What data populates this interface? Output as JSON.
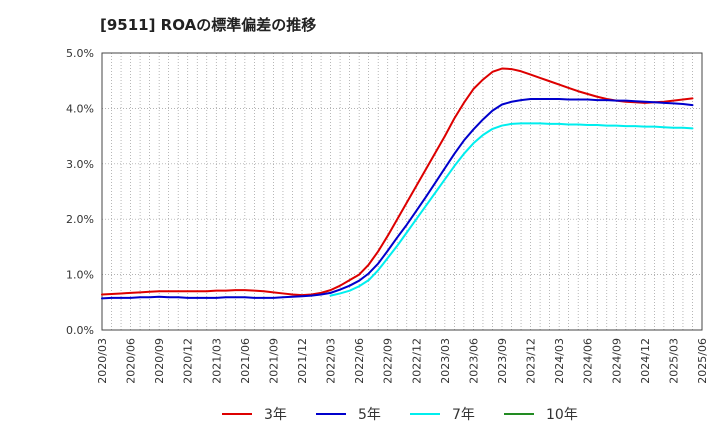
{
  "chart_data": {
    "type": "line",
    "title": "[9511]  ROAの標準偏差の推移",
    "xlabel": "",
    "ylabel": "",
    "ylim": [
      0,
      5
    ],
    "yticks": [
      0,
      1,
      2,
      3,
      4,
      5
    ],
    "ytick_labels": [
      "0.0%",
      "1.0%",
      "2.0%",
      "3.0%",
      "4.0%",
      "5.0%"
    ],
    "xlim": [
      "2020/03",
      "2025/06"
    ],
    "xtick_labels": [
      "2020/03",
      "2020/06",
      "2020/09",
      "2020/12",
      "2021/03",
      "2021/06",
      "2021/09",
      "2021/12",
      "2022/03",
      "2022/06",
      "2022/09",
      "2022/12",
      "2023/03",
      "2023/06",
      "2023/09",
      "2023/12",
      "2024/03",
      "2024/06",
      "2024/09",
      "2024/12",
      "2025/03",
      "2025/06"
    ],
    "grid": true,
    "legend_position": "bottom",
    "series": [
      {
        "name": "3年",
        "color": "#dd0000",
        "start": "2020/03",
        "values": [
          0.64,
          0.65,
          0.66,
          0.67,
          0.68,
          0.69,
          0.7,
          0.7,
          0.7,
          0.7,
          0.7,
          0.7,
          0.71,
          0.71,
          0.72,
          0.72,
          0.71,
          0.7,
          0.68,
          0.66,
          0.64,
          0.63,
          0.64,
          0.67,
          0.72,
          0.8,
          0.9,
          1.0,
          1.18,
          1.42,
          1.7,
          2.0,
          2.3,
          2.6,
          2.9,
          3.2,
          3.5,
          3.82,
          4.1,
          4.35,
          4.52,
          4.66,
          4.72,
          4.71,
          4.67,
          4.61,
          4.55,
          4.49,
          4.43,
          4.37,
          4.31,
          4.26,
          4.21,
          4.17,
          4.14,
          4.12,
          4.11,
          4.1,
          4.11,
          4.12,
          4.14,
          4.16,
          4.18
        ]
      },
      {
        "name": "5年",
        "color": "#0000cc",
        "start": "2020/03",
        "values": [
          0.57,
          0.58,
          0.58,
          0.58,
          0.59,
          0.59,
          0.6,
          0.59,
          0.59,
          0.58,
          0.58,
          0.58,
          0.58,
          0.59,
          0.59,
          0.59,
          0.58,
          0.58,
          0.58,
          0.59,
          0.6,
          0.61,
          0.62,
          0.64,
          0.67,
          0.73,
          0.8,
          0.89,
          1.02,
          1.2,
          1.43,
          1.67,
          1.9,
          2.15,
          2.4,
          2.66,
          2.92,
          3.18,
          3.42,
          3.62,
          3.8,
          3.96,
          4.07,
          4.12,
          4.15,
          4.17,
          4.17,
          4.17,
          4.17,
          4.16,
          4.16,
          4.16,
          4.15,
          4.15,
          4.14,
          4.14,
          4.13,
          4.12,
          4.11,
          4.1,
          4.09,
          4.08,
          4.06
        ]
      },
      {
        "name": "7年",
        "color": "#00eeee",
        "start": "2022/03",
        "values": [
          0.62,
          0.66,
          0.71,
          0.79,
          0.9,
          1.08,
          1.3,
          1.52,
          1.76,
          2.0,
          2.24,
          2.48,
          2.72,
          2.96,
          3.18,
          3.37,
          3.52,
          3.63,
          3.69,
          3.72,
          3.73,
          3.73,
          3.73,
          3.72,
          3.72,
          3.71,
          3.71,
          3.7,
          3.7,
          3.69,
          3.69,
          3.68,
          3.68,
          3.67,
          3.67,
          3.66,
          3.65,
          3.65,
          3.64
        ]
      },
      {
        "name": "10年",
        "color": "#228b22",
        "start": "2020/03",
        "values": []
      }
    ]
  }
}
